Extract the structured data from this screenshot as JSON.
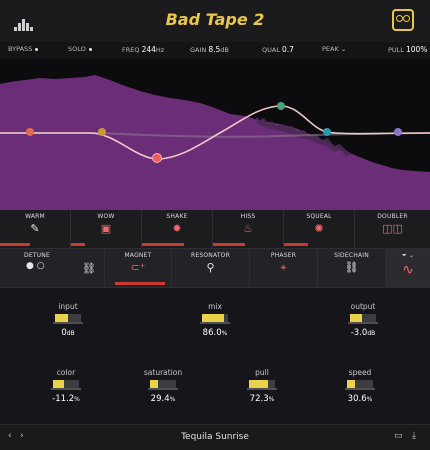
{
  "header": {
    "title": "Bad Tape 2",
    "logo_icon": "waveform-logo-icon",
    "tape_icon": "cassette-tape-icon"
  },
  "params": {
    "bypass": "BYPASS",
    "solo": "SOLO",
    "freq_label": "FREQ",
    "freq_value": "244",
    "freq_unit": "Hz",
    "gain_label": "GAIN",
    "gain_value": "8.5",
    "gain_unit": "dB",
    "qual_label": "QUAL",
    "qual_value": "0.7",
    "type_label": "PEAK",
    "pull_label": "PULL",
    "pull_value": "100%"
  },
  "row1": [
    {
      "label": "WARM",
      "icon": "brush-icon",
      "active": true
    },
    {
      "label": "WOW",
      "icon": "tape-icon",
      "active": true
    },
    {
      "label": "SHAKE",
      "icon": "shake-icon",
      "active": true
    },
    {
      "label": "HISS",
      "icon": "hiss-icon",
      "active": true
    },
    {
      "label": "SQUEAL",
      "icon": "squeal-icon",
      "active": true
    },
    {
      "label": "DOUBLER",
      "icon": "doubler-icon",
      "active": false
    }
  ],
  "row2": [
    {
      "label": "DETUNE",
      "icon": "detune-icon"
    },
    {
      "label": "MAGNET",
      "icon": "magnet-icon"
    },
    {
      "label": "RESONATOR",
      "icon": "resonator-icon"
    },
    {
      "label": "PHASER",
      "icon": "phaser-icon"
    },
    {
      "label": "SIDECHAIN",
      "icon": "link-icon"
    }
  ],
  "knobs": {
    "input": {
      "label": "input",
      "value": "0",
      "unit": "dB",
      "level": 0.5
    },
    "mix": {
      "label": "mix",
      "value": "86.0",
      "unit": "%",
      "level": 0.86
    },
    "output": {
      "label": "output",
      "value": "-3.0",
      "unit": "dB",
      "level": 0.45
    },
    "color": {
      "label": "color",
      "value": "-11.2",
      "unit": "%",
      "level": 0.44
    },
    "saturation": {
      "label": "saturation",
      "value": "29.4",
      "unit": "%",
      "level": 0.29
    },
    "pull": {
      "label": "pull",
      "value": "72.3",
      "unit": "%",
      "level": 0.72
    },
    "speed": {
      "label": "speed",
      "value": "30.6",
      "unit": "%",
      "level": 0.31
    }
  },
  "footer": {
    "preset": "Tequila Sunrise"
  },
  "colors": {
    "accent": "#e9c74a",
    "active_indicator": "#c93a33",
    "spectrum": "#6b2d78",
    "eq_curve": "#f0c9c9"
  }
}
